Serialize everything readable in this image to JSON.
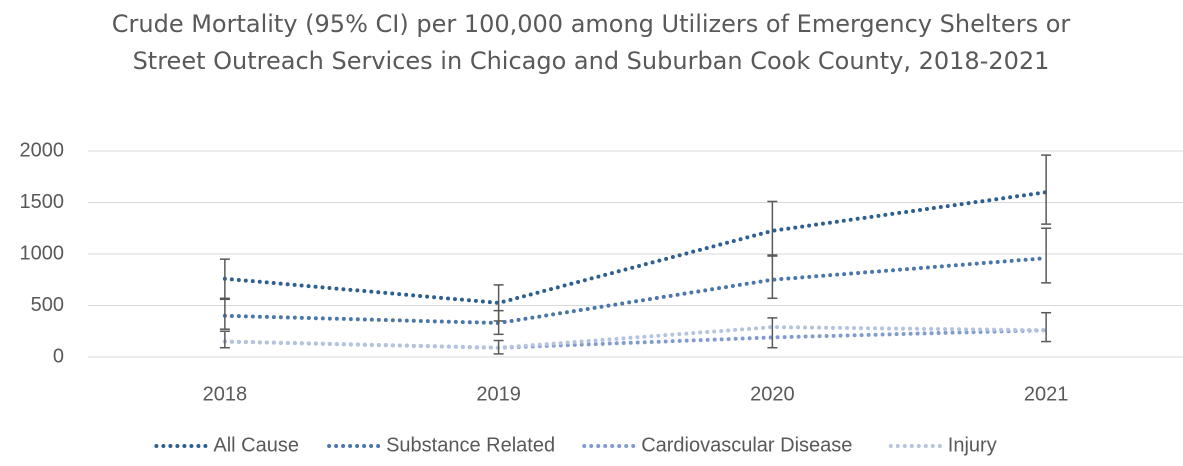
{
  "chart_data": {
    "type": "line",
    "title": "Crude Mortality (95% CI) per 100,000 among Utilizers of Emergency Shelters or Street Outreach Services in Chicago and Suburban Cook County, 2018-2021",
    "categories": [
      "2018",
      "2019",
      "2020",
      "2021"
    ],
    "series": [
      {
        "name": "All Cause",
        "color": "#2e5f8f",
        "values": [
          760,
          525,
          1225,
          1600
        ],
        "ci_low": [
          570,
          350,
          980,
          1290
        ],
        "ci_high": [
          950,
          700,
          1510,
          1960
        ]
      },
      {
        "name": "Substance Related",
        "color": "#4a76a8",
        "values": [
          400,
          330,
          750,
          960
        ],
        "ci_low": [
          270,
          220,
          570,
          720
        ],
        "ci_high": [
          560,
          450,
          990,
          1250
        ]
      },
      {
        "name": "Cardiovascular Disease",
        "color": "#7f9ccc",
        "values": [
          150,
          90,
          190,
          260
        ],
        "ci_low": [
          90,
          30,
          90,
          150
        ],
        "ci_high": [
          250,
          160,
          380,
          430
        ]
      },
      {
        "name": "Injury",
        "color": "#b4c3e0",
        "values": [
          150,
          90,
          290,
          260
        ]
      }
    ],
    "ylim": [
      0,
      2000
    ],
    "yticks": [
      0,
      500,
      1000,
      1500,
      2000
    ],
    "grid": true,
    "legend": "bottom"
  }
}
